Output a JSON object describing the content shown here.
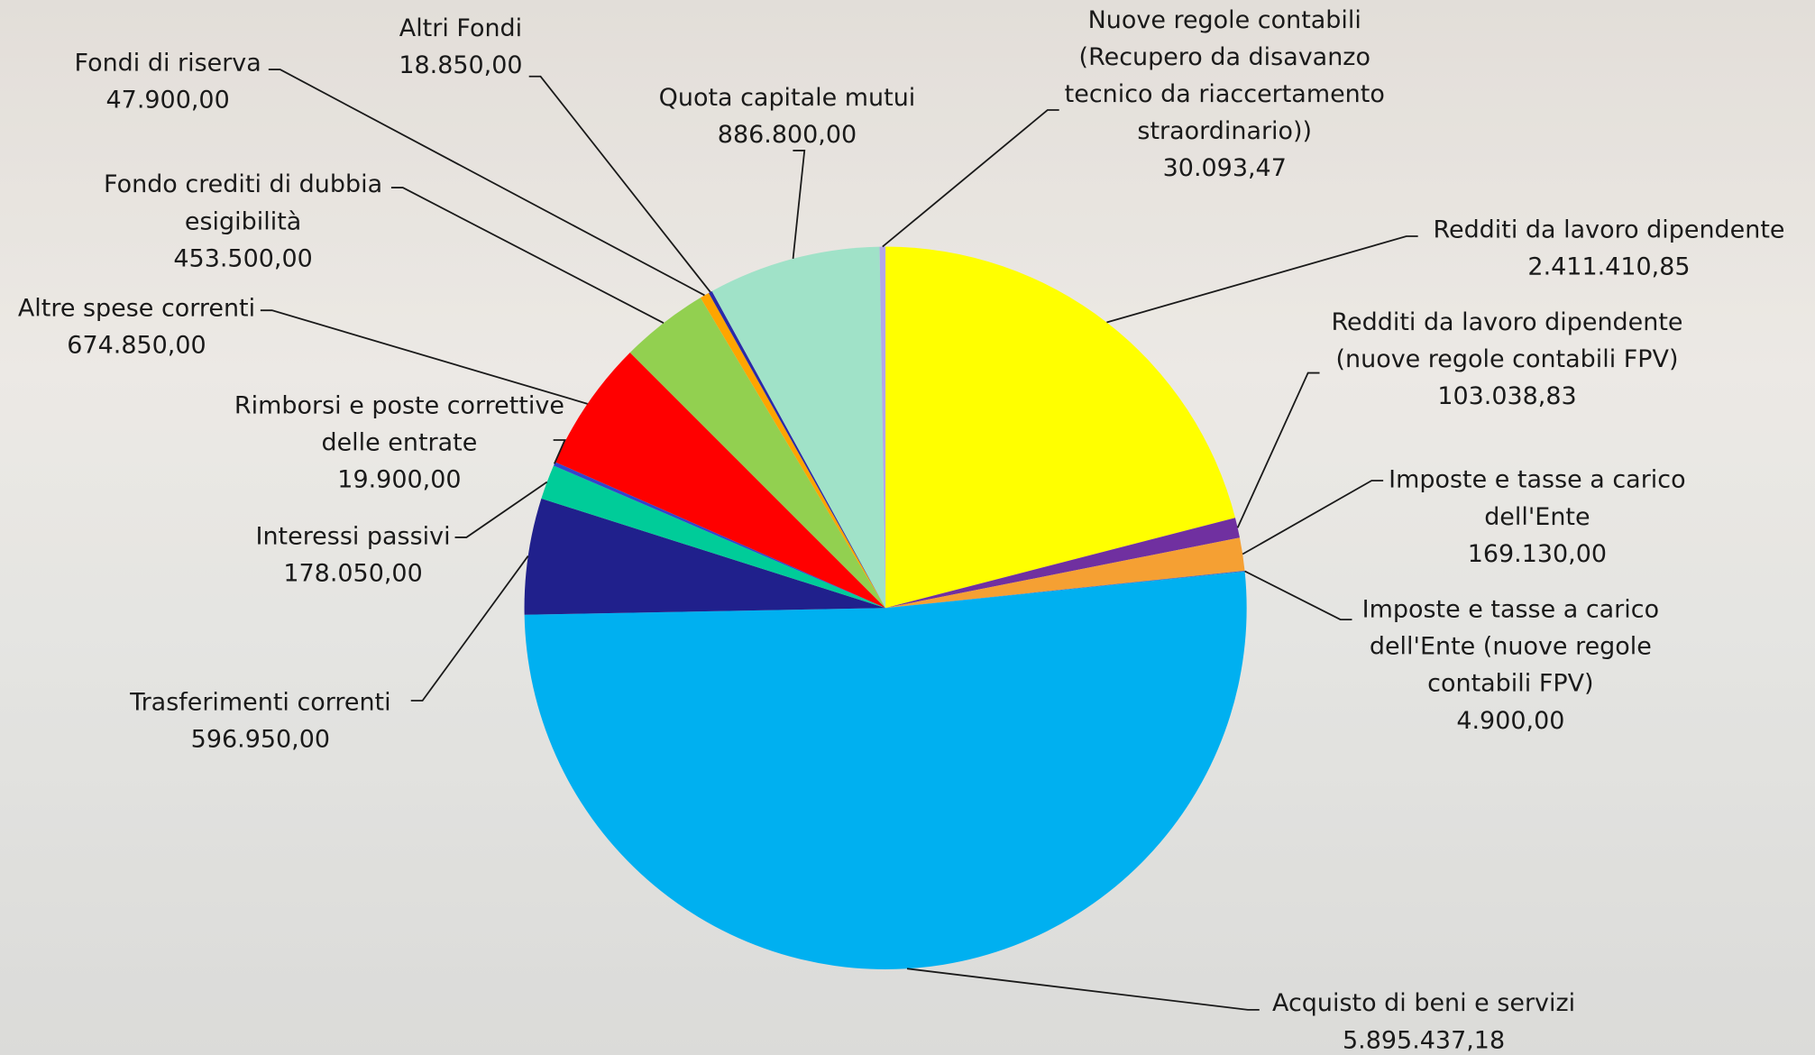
{
  "chart_data": {
    "type": "pie",
    "categories": [
      "Redditi da lavoro dipendente",
      "Redditi da lavoro dipendente (nuove regole contabili FPV)",
      "Imposte e tasse a carico dell'Ente",
      "Imposte e tasse a carico dell'Ente (nuove regole contabili FPV)",
      "Acquisto di beni e servizi",
      "Trasferimenti correnti",
      "Interessi passivi",
      "Rimborsi e poste correttive delle entrate",
      "Altre spese correnti",
      "Fondo crediti di dubbia esigibilità",
      "Fondi di riserva",
      "Altri Fondi",
      "Quota capitale mutui",
      "Nuove regole contabili (Recupero da disavanzo tecnico da riaccertamento straordinario))"
    ],
    "values": [
      2411410.85,
      103038.83,
      169130,
      4900,
      5895437.18,
      596950,
      178050,
      19900,
      674850,
      453500,
      47900,
      18850,
      886800,
      30093.47
    ],
    "value_labels": [
      "2.411.410,85",
      "103.038,83",
      "169.130,00",
      "4.900,00",
      "5.895.437,18",
      "596.950,00",
      "178.050,00",
      "19.900,00",
      "674.850,00",
      "453.500,00",
      "47.900,00",
      "18.850,00",
      "886.800,00",
      "30.093,47"
    ],
    "colors": [
      "#ffff00",
      "#7030a0",
      "#f5a033",
      "#4472c4",
      "#00b0f0",
      "#20208c",
      "#00cc99",
      "#3344cc",
      "#ff0000",
      "#92d050",
      "#ffa500",
      "#2a2aa8",
      "#a0e2c8",
      "#b4a6e6"
    ]
  }
}
